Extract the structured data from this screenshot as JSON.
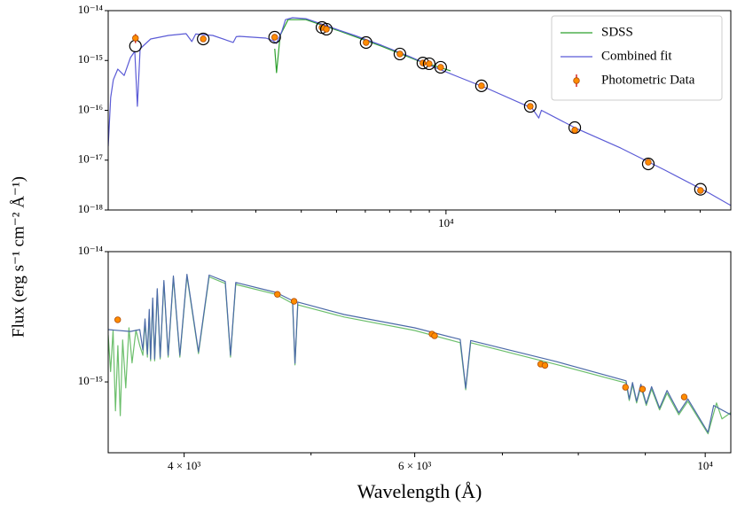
{
  "chart_data": [
    {
      "type": "line",
      "xlog": true,
      "ylog": true,
      "ylabel": "Flux (erg s⁻¹ cm⁻² Å⁻¹)",
      "xlim": [
        1178,
        60700
      ],
      "ylim": [
        1e-18,
        1e-14
      ],
      "xticks": [
        {
          "value": 10000,
          "label": "10⁴"
        }
      ],
      "xminorticks": [
        2000,
        3000,
        4000,
        5000,
        6000,
        7000,
        8000,
        9000,
        20000,
        30000,
        40000,
        50000
      ],
      "yticks": [
        {
          "value": 1e-18,
          "label": "10⁻¹⁸"
        },
        {
          "value": 1e-17,
          "label": "10⁻¹⁷"
        },
        {
          "value": 1e-16,
          "label": "10⁻¹⁶"
        },
        {
          "value": 1e-15,
          "label": "10⁻¹⁵"
        },
        {
          "value": 1e-14,
          "label": "10⁻¹⁴"
        }
      ],
      "legend": "upper right",
      "series": [
        {
          "name": "SDSS",
          "type": "line",
          "color": "#2ca02c",
          "x": [
            3381,
            3420,
            3500,
            3680,
            4119,
            5012,
            6640,
            8310,
            10290
          ],
          "values": [
            1.72e-15,
            5.7e-16,
            3.18e-15,
            6.6e-15,
            6.6e-15,
            4.06e-15,
            1.94e-15,
            1.01e-15,
            6.2e-16
          ]
        },
        {
          "name": "Combined fit",
          "type": "line",
          "color": "#5b5bd6",
          "x": [
            1178,
            1197,
            1217,
            1252,
            1303,
            1356,
            1394,
            1417,
            1442,
            1542,
            1726,
            1929,
            2000,
            2050,
            2284,
            2600,
            2650,
            2704,
            3199,
            3345,
            3420,
            3540,
            3620,
            3787,
            4119,
            4480,
            5012,
            5610,
            6640,
            7860,
            9300,
            11000,
            13020,
            17250,
            18000,
            18300,
            22860,
            30230,
            40000,
            52970,
            60700
          ],
          "values": [
            1.9e-17,
            1.81e-16,
            4.1e-16,
            6.7e-16,
            5e-16,
            1.14e-15,
            1.52e-15,
            1.2e-16,
            1.72e-15,
            2.7e-15,
            3.18e-15,
            3.45e-15,
            2.4e-15,
            3.4e-15,
            3.18e-15,
            2.3e-15,
            3e-15,
            3.05e-15,
            2.81e-15,
            2.49e-15,
            2.2e-15,
            3.9e-15,
            6.6e-15,
            7.2e-15,
            6.9e-15,
            5.6e-15,
            4.2e-15,
            3.18e-15,
            2.03e-15,
            1.24e-15,
            7.3e-16,
            4.45e-16,
            2.73e-16,
            1.1e-16,
            7e-17,
            1e-16,
            4.3e-17,
            1.75e-17,
            6.3e-18,
            2.18e-18,
            1.23e-18
          ]
        },
        {
          "name": "Photometric Data",
          "type": "errorbar",
          "color": "#ff8c00",
          "ecolor": "#d62728",
          "model_color": "#000000",
          "x": [
            1400,
            2150,
            3380,
            4560,
            4690,
            6030,
            7470,
            8640,
            8990,
            9670,
            12520,
            17050,
            22600,
            36000,
            50100
          ],
          "values": [
            2.81e-15,
            2.7e-15,
            2.93e-15,
            4.59e-15,
            4.24e-15,
            2.29e-15,
            1.35e-15,
            8.9e-16,
            8.6e-16,
            7.3e-16,
            3.1e-16,
            1.2e-16,
            4e-17,
            9.1e-18,
            2.46e-18
          ],
          "errors": [
            5.8e-16,
            null,
            null,
            null,
            null,
            null,
            null,
            null,
            null,
            null,
            null,
            null,
            null,
            null,
            null
          ],
          "model_values": [
            1.95e-15,
            2.7e-15,
            2.93e-15,
            4.59e-15,
            4.24e-15,
            2.29e-15,
            1.35e-15,
            8.9e-16,
            8.6e-16,
            7.3e-16,
            3.1e-16,
            1.2e-16,
            4.5e-17,
            8.4e-18,
            2.6e-18
          ]
        }
      ]
    },
    {
      "type": "line",
      "xlog": true,
      "ylog": true,
      "xlabel": "Wavelength (Å)",
      "xlim": [
        3500,
        10460
      ],
      "ylim": [
        2.86e-16,
        1e-14
      ],
      "xticks": [
        {
          "value": 4000,
          "label": "4 × 10³"
        },
        {
          "value": 6000,
          "label": "6 × 10³"
        },
        {
          "value": 10000,
          "label": "10⁴"
        }
      ],
      "xminorticks": [
        5000,
        7000,
        8000,
        9000
      ],
      "yticks": [
        {
          "value": 1e-15,
          "label": "10⁻¹⁵"
        },
        {
          "value": 1e-14,
          "label": "10⁻¹⁴"
        }
      ],
      "series": [
        {
          "type": "line",
          "color": "#6cbf6c",
          "x": [
            3500,
            3515,
            3530,
            3545,
            3560,
            3575,
            3590,
            3610,
            3630,
            3650,
            3675,
            3700,
            3720,
            3734,
            3750,
            3762,
            3771,
            3785,
            3798,
            3815,
            3835,
            3860,
            3889,
            3925,
            3970,
            4020,
            4102,
            4180,
            4300,
            4340,
            4380,
            4700,
            4840,
            4861,
            4885,
            5300,
            6000,
            6500,
            6563,
            6620,
            7700,
            8700,
            8750,
            8800,
            8863,
            8930,
            9015,
            9100,
            9229,
            9350,
            9546,
            9700,
            10049,
            10200,
            10300,
            10460
          ],
          "values": [
            2.3e-15,
            1.2e-15,
            2.5e-15,
            6e-16,
            1.9e-15,
            5.5e-16,
            2.1e-15,
            9e-16,
            2.6e-15,
            1.4e-15,
            2.5e-15,
            1.9e-15,
            1.6e-15,
            2.9e-15,
            1.55e-15,
            3.4e-15,
            1.45e-15,
            4.2e-15,
            1.45e-15,
            5e-15,
            1.5e-15,
            5.8e-15,
            1.55e-15,
            6.3e-15,
            1.55e-15,
            6.5e-15,
            1.65e-15,
            6.4e-15,
            5.7e-15,
            1.55e-15,
            5.6e-15,
            4.7e-15,
            4e-15,
            1.35e-15,
            3.9e-15,
            3.15e-15,
            2.48e-15,
            2e-15,
            8.7e-16,
            2e-15,
            1.36e-15,
            9.8e-16,
            7.2e-16,
            9.5e-16,
            6.9e-16,
            9.2e-16,
            6.6e-16,
            8.8e-16,
            6.1e-16,
            8.2e-16,
            5.6e-16,
            7.1e-16,
            4e-16,
            6.9e-16,
            5.2e-16,
            5.8e-16
          ]
        },
        {
          "type": "line",
          "color": "#4c6aa8",
          "x": [
            3500,
            3640,
            3700,
            3720,
            3734,
            3750,
            3762,
            3771,
            3785,
            3798,
            3815,
            3835,
            3860,
            3889,
            3925,
            3970,
            4020,
            4102,
            4180,
            4300,
            4340,
            4380,
            4700,
            4840,
            4861,
            4885,
            5300,
            6000,
            6500,
            6563,
            6620,
            7700,
            8700,
            8750,
            8800,
            8863,
            8930,
            9015,
            9100,
            9229,
            9350,
            9546,
            9700,
            10049,
            10150,
            10460
          ],
          "values": [
            2.52e-15,
            2.44e-15,
            2.52e-15,
            1.76e-15,
            3.04e-15,
            1.63e-15,
            3.6e-15,
            1.5e-15,
            4.4e-15,
            1.5e-15,
            5.2e-15,
            1.55e-15,
            6e-15,
            1.6e-15,
            6.5e-15,
            1.6e-15,
            6.7e-15,
            1.7e-15,
            6.6e-15,
            5.9e-15,
            1.6e-15,
            5.8e-15,
            4.87e-15,
            4.2e-15,
            1.39e-15,
            4.1e-15,
            3.29e-15,
            2.6e-15,
            2.12e-15,
            8.95e-16,
            2.08e-15,
            1.43e-15,
            1.02e-15,
            7.4e-16,
            9.9e-16,
            7.1e-16,
            9.6e-16,
            6.8e-16,
            9.2e-16,
            6.3e-16,
            8.6e-16,
            5.8e-16,
            7.4e-16,
            4.1e-16,
            6.6e-16,
            5.6e-16
          ]
        },
        {
          "type": "points",
          "color": "#ff8c00",
          "x": [
            3559,
            4713,
            4853,
            6185,
            6213,
            7488,
            7544,
            8692,
            8956,
            9637
          ],
          "values": [
            3e-15,
            4.7e-15,
            4.16e-15,
            2.33e-15,
            2.26e-15,
            1.37e-15,
            1.34e-15,
            9.1e-16,
            8.8e-16,
            7.66e-16
          ]
        }
      ]
    }
  ]
}
